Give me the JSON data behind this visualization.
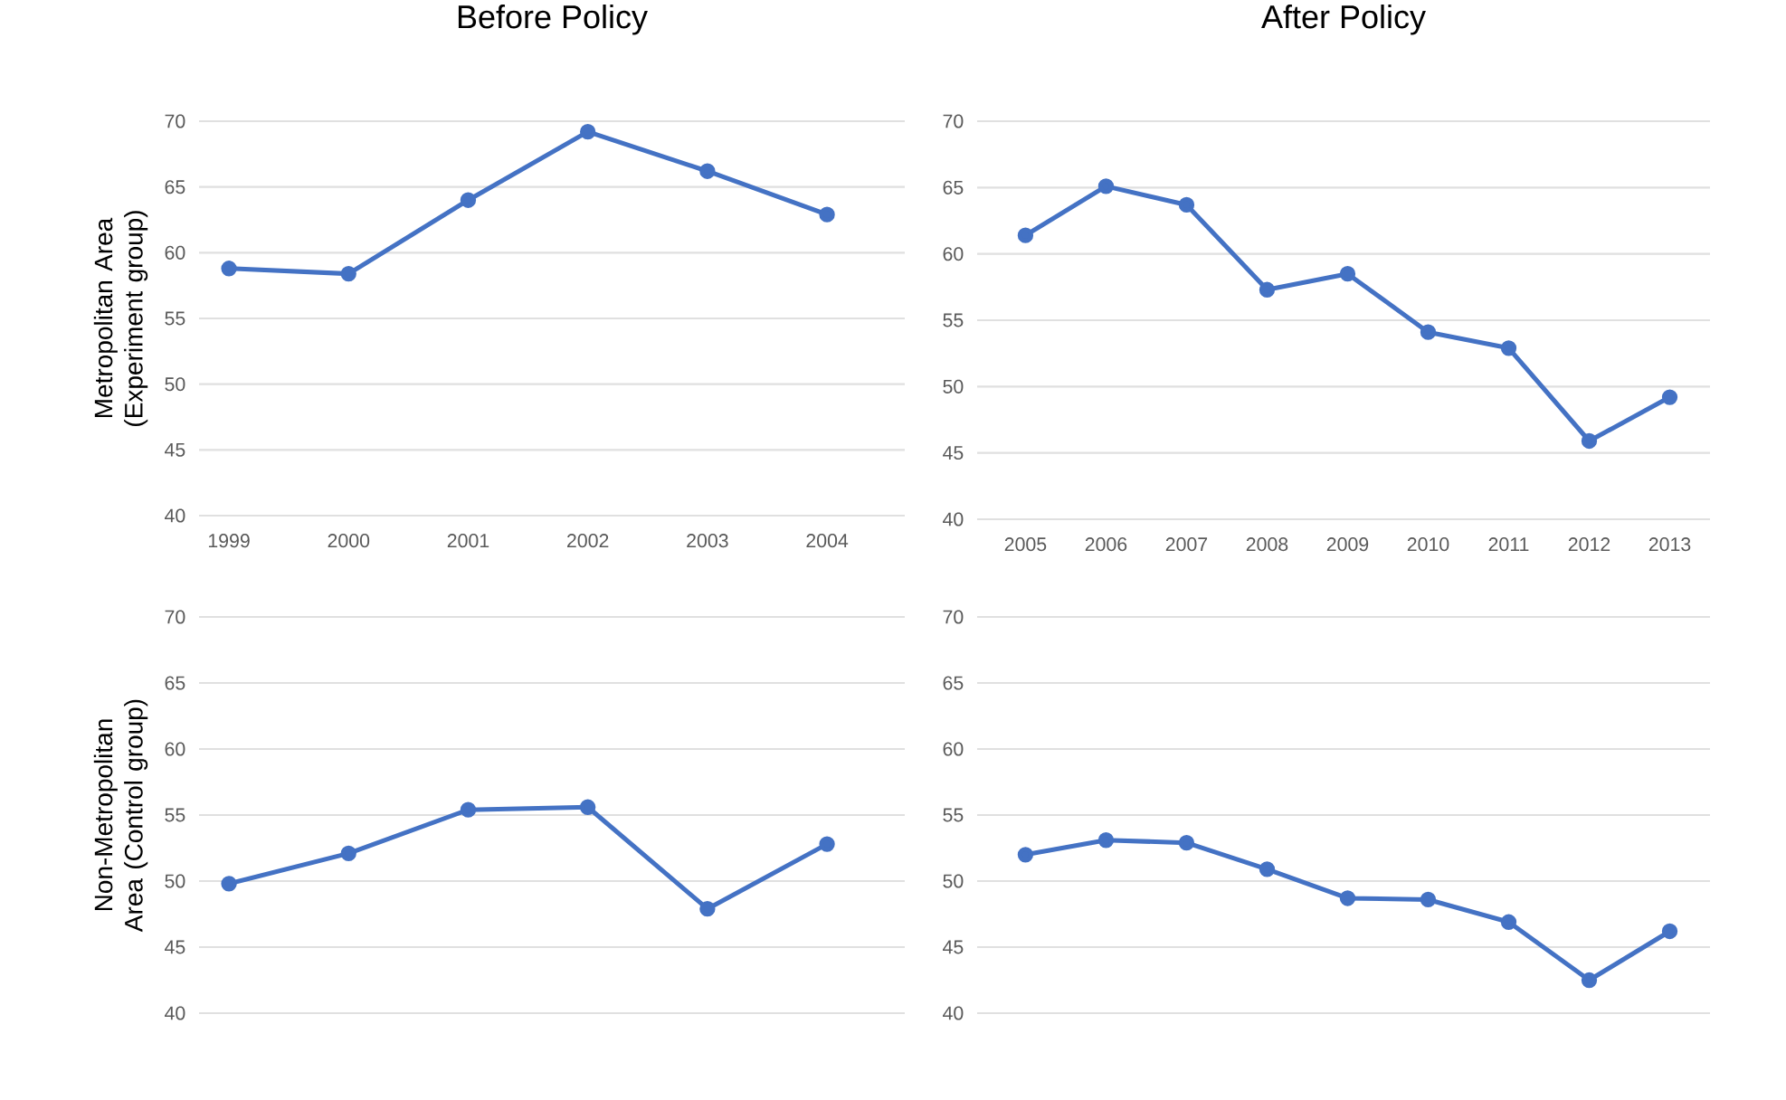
{
  "chart_data": [
    {
      "type": "line",
      "title": "Before Policy",
      "ylabel": "Metropolitan Area (Experiment group)",
      "categories": [
        "1999",
        "2000",
        "2001",
        "2002",
        "2003",
        "2004"
      ],
      "values": [
        58.8,
        58.4,
        64.0,
        69.2,
        66.2,
        62.9
      ],
      "color": "#4472c4",
      "ylim": [
        40,
        70
      ],
      "yticks": [
        40,
        45,
        50,
        55,
        60,
        65,
        70
      ],
      "grid": "y",
      "marker": "circle"
    },
    {
      "type": "line",
      "title": "After Policy",
      "categories": [
        "2005",
        "2006",
        "2007",
        "2008",
        "2009",
        "2010",
        "2011",
        "2012",
        "2013"
      ],
      "values": [
        61.4,
        65.1,
        63.7,
        57.3,
        58.5,
        54.1,
        52.9,
        45.9,
        49.2
      ],
      "color": "#4472c4",
      "ylim": [
        40,
        70
      ],
      "yticks": [
        40,
        45,
        50,
        55,
        60,
        65,
        70
      ],
      "grid": "y",
      "marker": "circle"
    },
    {
      "type": "line",
      "ylabel": "Non-Metropolitan Area (Control group)",
      "categories": [
        "1999",
        "2000",
        "2001",
        "2002",
        "2003",
        "2004"
      ],
      "values": [
        49.8,
        52.1,
        55.4,
        55.6,
        47.9,
        52.8
      ],
      "color": "#4472c4",
      "ylim": [
        40,
        70
      ],
      "yticks": [
        40,
        45,
        50,
        55,
        60,
        65,
        70
      ],
      "grid": "y",
      "marker": "circle",
      "tick_labels": "y"
    },
    {
      "type": "line",
      "categories": [
        "2005",
        "2006",
        "2007",
        "2008",
        "2009",
        "2010",
        "2011",
        "2012",
        "2013"
      ],
      "values": [
        52.0,
        53.1,
        52.9,
        50.9,
        48.7,
        48.6,
        46.9,
        42.5,
        46.2
      ],
      "color": "#4472c4",
      "ylim": [
        40,
        70
      ],
      "yticks": [
        40,
        45,
        50,
        55,
        60,
        65,
        70
      ],
      "grid": "y",
      "marker": "circle",
      "tick_labels": "y"
    }
  ]
}
